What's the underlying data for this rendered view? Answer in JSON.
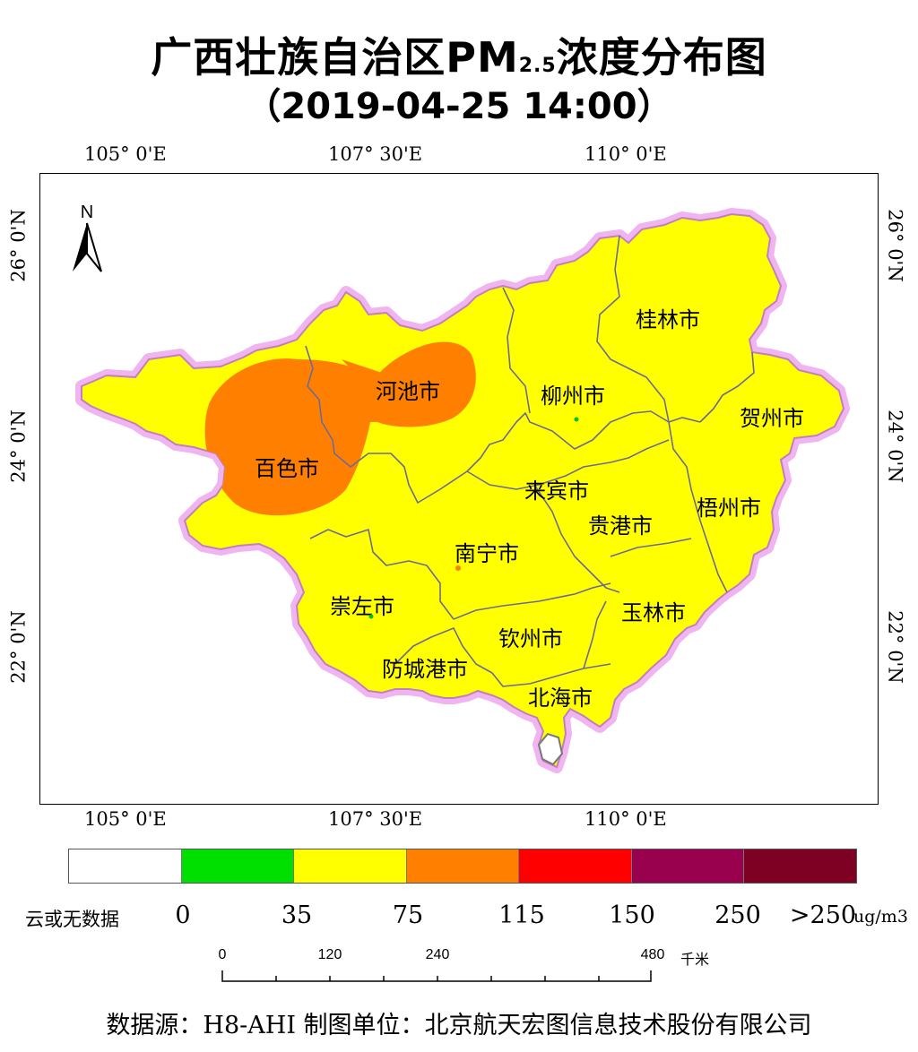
{
  "title": {
    "line1_main": "广西壮族自治区PM",
    "line1_sub": "2.5",
    "line1_tail": "浓度分布图",
    "line2": "（2019-04-25 14:00）"
  },
  "map": {
    "north_label": "N",
    "lon_ticks": [
      "105° 0'E",
      "107° 30'E",
      "110° 0'E"
    ],
    "lat_ticks": [
      "26° 0'N",
      "24° 0'N",
      "22° 0'N"
    ],
    "cities": [
      "桂林市",
      "河池市",
      "柳州市",
      "贺州市",
      "百色市",
      "来宾市",
      "梧州市",
      "贵港市",
      "南宁市",
      "崇左市",
      "玉林市",
      "钦州市",
      "防城港市",
      "北海市"
    ],
    "colors": {
      "province_fill": "#ffff00",
      "hotspot_fill": "#ff8000",
      "boundary_halo": "#e8a0e8",
      "district_line": "#6b6b9a"
    }
  },
  "legend": {
    "colors": [
      "#ffffff",
      "#00e000",
      "#ffff00",
      "#ff7f00",
      "#ff0000",
      "#99004d",
      "#7e0023"
    ],
    "labels": [
      "0",
      "35",
      "75",
      "115",
      "150",
      "250",
      ">250"
    ],
    "no_data_label": "云或无数据",
    "unit": "ug/m3"
  },
  "scale_bar": {
    "labels": [
      "0",
      "120",
      "240",
      "480"
    ],
    "unit": "千米"
  },
  "footer": "数据源：H8-AHI 制图单位：北京航天宏图信息技术股份有限公司"
}
